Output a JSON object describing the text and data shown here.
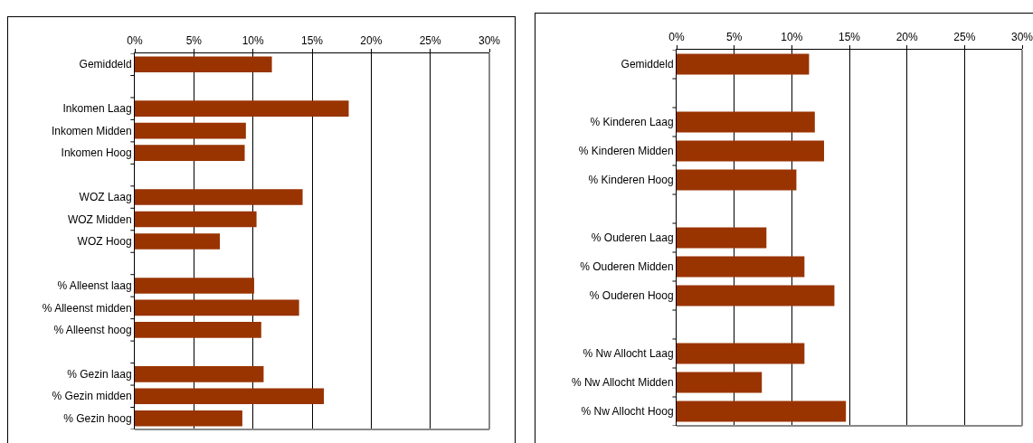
{
  "chart_data": [
    {
      "type": "bar",
      "orientation": "horizontal",
      "color": "#993300",
      "grid": "x",
      "categories": [
        "Gemiddeld",
        null,
        "Inkomen Laag",
        "Inkomen Midden",
        "Inkomen Hoog",
        null,
        "WOZ Laag",
        "WOZ Midden",
        "WOZ Hoog",
        null,
        "% Alleenst laag",
        "% Alleenst midden",
        "% Alleenst hoog",
        null,
        "% Gezin laag",
        "% Gezin midden",
        "% Gezin hoog"
      ],
      "values": [
        11.6,
        null,
        18.1,
        9.4,
        9.3,
        null,
        14.2,
        10.3,
        7.2,
        null,
        10.1,
        13.9,
        10.7,
        null,
        10.9,
        16.0,
        9.1
      ],
      "xlim": [
        0,
        30
      ],
      "xticks": [
        {
          "value": 0,
          "label": "0%"
        },
        {
          "value": 5,
          "label": "5%"
        },
        {
          "value": 10,
          "label": "10%"
        },
        {
          "value": 15,
          "label": "15%"
        },
        {
          "value": 20,
          "label": "20%"
        },
        {
          "value": 25,
          "label": "25%"
        },
        {
          "value": 30,
          "label": "30%"
        }
      ]
    },
    {
      "type": "bar",
      "orientation": "horizontal",
      "color": "#993300",
      "grid": "x",
      "categories": [
        "Gemiddeld",
        null,
        "% Kinderen Laag",
        "% Kinderen Midden",
        "% Kinderen Hoog",
        null,
        "% Ouderen Laag",
        "% Ouderen Midden",
        "% Ouderen Hoog",
        null,
        "% Nw Allocht Laag",
        "% Nw Allocht Midden",
        "% Nw Allocht Hoog"
      ],
      "values": [
        11.5,
        null,
        12.0,
        12.8,
        10.4,
        null,
        7.8,
        11.1,
        13.7,
        null,
        11.1,
        7.4,
        14.7
      ],
      "xlim": [
        0,
        30
      ],
      "xticks": [
        {
          "value": 0,
          "label": "0%"
        },
        {
          "value": 5,
          "label": "5%"
        },
        {
          "value": 10,
          "label": "10%"
        },
        {
          "value": 15,
          "label": "15%"
        },
        {
          "value": 20,
          "label": "20%"
        },
        {
          "value": 25,
          "label": "25%"
        },
        {
          "value": 30,
          "label": "30%"
        }
      ]
    }
  ]
}
